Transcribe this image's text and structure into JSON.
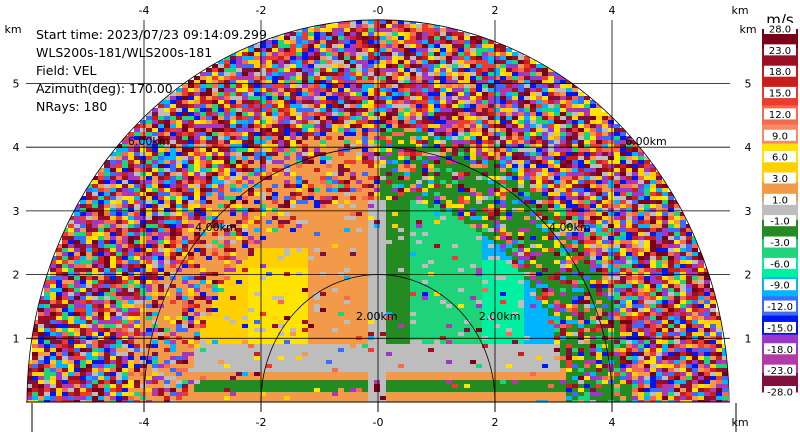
{
  "info": {
    "start_time": "Start time: 2023/07/23 09:14:09.299",
    "instrument": "WLS200s-181/WLS200s-181",
    "field": "Field: VEL",
    "azimuth": "Azimuth(deg): 170.00",
    "nrays": "NRays: 180"
  },
  "chart_data": {
    "type": "heatmap",
    "title": "",
    "xlabel": "km",
    "ylabel": "km",
    "x_unit": "km",
    "y_unit": "km",
    "xlim": [
      -6.0,
      6.0
    ],
    "ylim": [
      0.0,
      5.0
    ],
    "x_ticks": [
      -4,
      -2,
      0,
      2,
      4
    ],
    "x_tick_labels": [
      "-4",
      "-2",
      "-0",
      "2",
      "4"
    ],
    "y_ticks": [
      1,
      2,
      3,
      4,
      5
    ],
    "y_tick_labels": [
      "1",
      "2",
      "3",
      "4",
      "5"
    ],
    "range_rings_km": [
      2,
      4,
      6
    ],
    "range_ring_labels": [
      "2.00km",
      "4.00km",
      "6.00km"
    ],
    "grid": true,
    "colorbar": {
      "unit_label": "m/s",
      "tick_labels": [
        "28.0",
        "23.0",
        "18.0",
        "15.0",
        "12.0",
        "9.0",
        "6.0",
        "3.0",
        "1.0",
        "-1.0",
        "-3.0",
        "-6.0",
        "-9.0",
        "-12.0",
        "-15.0",
        "-18.0",
        "-23.0",
        "-28.0"
      ],
      "colors": [
        "#7a0019",
        "#9b0f22",
        "#c81e1e",
        "#ee3b2f",
        "#f56a4e",
        "#f58a66",
        "#ffe400",
        "#ffd000",
        "#f29a4a",
        "#bdbdbd",
        "#238b22",
        "#1fd37a",
        "#00f0a0",
        "#00b4ff",
        "#3a6cff",
        "#0016ee",
        "#9c38c9",
        "#b23aa6",
        "#801040"
      ]
    }
  }
}
